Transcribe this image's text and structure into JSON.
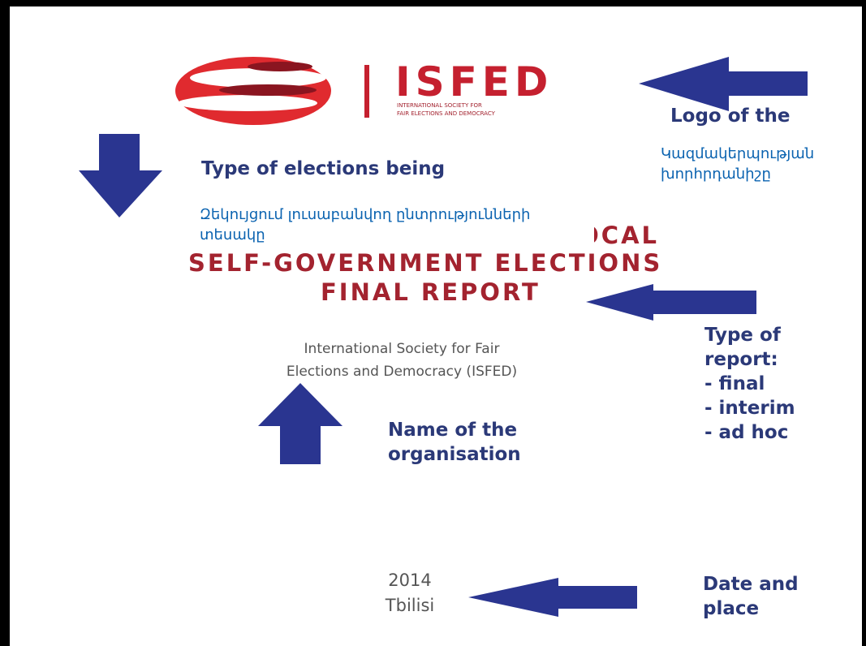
{
  "logo": {
    "name": "ISFED",
    "subtitle": [
      "INTERNATIONAL SOCIETY FOR",
      "FAIR ELECTIONS AND DEMOCRACY"
    ]
  },
  "report_title": [
    "OCAL",
    "SELF-GOVERNMENT ELECTIONS",
    "FINAL REPORT"
  ],
  "organisation": [
    "International Society for Fair",
    "Elections and Democracy (ISFED)"
  ],
  "date_place": [
    "2014",
    "Tbilisi"
  ],
  "annotations": {
    "logo": {
      "label": "Logo of the",
      "translation": [
        "Կազմակերպության",
        "խորհրդանիշը"
      ]
    },
    "elections": {
      "label": "Type of elections being",
      "translation": [
        "Զեկույցում լուսաբանվող ընտրությունների",
        "տեսակը"
      ]
    },
    "report_type": [
      "Type of",
      "report:",
      "- final",
      "- interim",
      "- ad hoc"
    ],
    "name": [
      "Name of the",
      "organisation"
    ],
    "date": [
      "Date and",
      "place"
    ]
  }
}
